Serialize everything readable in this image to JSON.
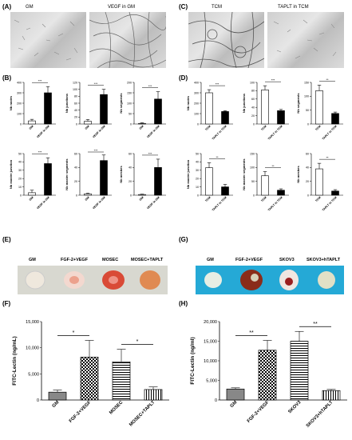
{
  "panels": {
    "A": {
      "label": "(A)",
      "titles": [
        "GM",
        "VEGF in GM"
      ]
    },
    "C": {
      "label": "(C)",
      "titles": [
        "TCM",
        "TAPLT in TCM"
      ]
    },
    "B": {
      "label": "(B)"
    },
    "D": {
      "label": "(D)"
    },
    "E": {
      "label": "(E)",
      "titles": [
        "GM",
        "FGF-2+VEGF",
        "MOSEC",
        "MOSEC+TAPLT"
      ]
    },
    "G": {
      "label": "(G)",
      "titles": [
        "GM",
        "FGF-2+VEGF",
        "SKOV3",
        "SKOV3+hTAPLT"
      ]
    },
    "F": {
      "label": "(F)"
    },
    "H": {
      "label": "(H)"
    }
  },
  "colors": {
    "black": "#000000",
    "white": "#ffffff",
    "grey": "#888888",
    "blue": "#25a9d6"
  },
  "chart_data": [
    {
      "id": "B1",
      "type": "bar",
      "categories": [
        "GM",
        "VEGF in GM"
      ],
      "values": [
        30,
        300
      ],
      "errors": [
        15,
        60
      ],
      "ylabel": "Nb nodes",
      "ylim": [
        0,
        400
      ],
      "yticks": [
        0,
        100,
        200,
        300,
        400
      ],
      "fills": [
        "white",
        "black"
      ],
      "sig": "***"
    },
    {
      "id": "B2",
      "type": "bar",
      "categories": [
        "GM",
        "VEGF in GM"
      ],
      "values": [
        8,
        85
      ],
      "errors": [
        5,
        15
      ],
      "ylabel": "Nb junctions",
      "ylim": [
        0,
        120
      ],
      "yticks": [
        0,
        20,
        40,
        60,
        80,
        100,
        120
      ],
      "fills": [
        "white",
        "black"
      ],
      "sig": "***"
    },
    {
      "id": "B3",
      "type": "bar",
      "categories": [
        "GM",
        "VEGF in GM"
      ],
      "values": [
        3,
        120
      ],
      "errors": [
        3,
        35
      ],
      "ylabel": "Nb segments",
      "ylim": [
        0,
        200
      ],
      "yticks": [
        0,
        50,
        100,
        150,
        200
      ],
      "fills": [
        "white",
        "black"
      ],
      "sig": "***"
    },
    {
      "id": "B4",
      "type": "bar",
      "categories": [
        "GM",
        "VEGF in GM"
      ],
      "values": [
        3,
        38
      ],
      "errors": [
        3,
        7
      ],
      "ylabel": "Nb master junction",
      "ylim": [
        0,
        50
      ],
      "yticks": [
        0,
        10,
        20,
        30,
        40,
        50
      ],
      "fills": [
        "white",
        "black"
      ],
      "sig": "***"
    },
    {
      "id": "B5",
      "type": "bar",
      "categories": [
        "GM",
        "VEGF in GM"
      ],
      "values": [
        2,
        50
      ],
      "errors": [
        1,
        8
      ],
      "ylabel": "Nb master segments",
      "ylim": [
        0,
        60
      ],
      "yticks": [
        0,
        20,
        40,
        60
      ],
      "fills": [
        "white",
        "black"
      ],
      "sig": "***"
    },
    {
      "id": "B6",
      "type": "bar",
      "categories": [
        "GM",
        "VEGF in GM"
      ],
      "values": [
        1,
        40
      ],
      "errors": [
        0.5,
        12
      ],
      "ylabel": "Nb meshes",
      "ylim": [
        0,
        60
      ],
      "yticks": [
        0,
        20,
        40,
        60
      ],
      "fills": [
        "white",
        "black"
      ],
      "sig": "***"
    },
    {
      "id": "D1",
      "type": "bar",
      "categories": [
        "TCM",
        "TAPLT in TCM"
      ],
      "values": [
        300,
        120
      ],
      "errors": [
        30,
        8
      ],
      "ylabel": "Nb nodes",
      "ylim": [
        0,
        400
      ],
      "yticks": [
        0,
        100,
        200,
        300,
        400
      ],
      "fills": [
        "white",
        "black"
      ],
      "sig": "***"
    },
    {
      "id": "D2",
      "type": "bar",
      "categories": [
        "TCM",
        "TAPLT in TCM"
      ],
      "values": [
        82,
        32
      ],
      "errors": [
        10,
        3
      ],
      "ylabel": "Nb junctions",
      "ylim": [
        0,
        100
      ],
      "yticks": [
        0,
        20,
        40,
        60,
        80,
        100
      ],
      "fills": [
        "white",
        "black"
      ],
      "sig": "***"
    },
    {
      "id": "D3",
      "type": "bar",
      "categories": [
        "TCM",
        "TAPLT in TCM"
      ],
      "values": [
        120,
        38
      ],
      "errors": [
        20,
        5
      ],
      "ylabel": "Nb segments",
      "ylim": [
        0,
        150
      ],
      "yticks": [
        0,
        50,
        100,
        150
      ],
      "fills": [
        "white",
        "black"
      ],
      "sig": "**"
    },
    {
      "id": "D4",
      "type": "bar",
      "categories": [
        "TCM",
        "TAPLT in TCM"
      ],
      "values": [
        33,
        10
      ],
      "errors": [
        6,
        3
      ],
      "ylabel": "Nb master junction",
      "ylim": [
        0,
        50
      ],
      "yticks": [
        0,
        10,
        20,
        30,
        40,
        50
      ],
      "fills": [
        "white",
        "black"
      ],
      "sig": "**"
    },
    {
      "id": "D5",
      "type": "bar",
      "categories": [
        "TCM",
        "TAPLT in TCM"
      ],
      "values": [
        70,
        18
      ],
      "errors": [
        15,
        5
      ],
      "ylabel": "Nb master segments",
      "ylim": [
        0,
        150
      ],
      "yticks": [
        0,
        50,
        100,
        150
      ],
      "fills": [
        "white",
        "black"
      ],
      "sig": "**"
    },
    {
      "id": "D6",
      "type": "bar",
      "categories": [
        "TCM",
        "TAPLT in TCM"
      ],
      "values": [
        38,
        6
      ],
      "errors": [
        8,
        2
      ],
      "ylabel": "Nb meshes",
      "ylim": [
        0,
        60
      ],
      "yticks": [
        0,
        20,
        40,
        60
      ],
      "fills": [
        "white",
        "black"
      ],
      "sig": "**"
    },
    {
      "id": "F",
      "type": "bar",
      "categories": [
        "GM",
        "FGF-2+VEGF",
        "MOSEC",
        "MOSEC+TAPLT"
      ],
      "values": [
        1500,
        8200,
        7300,
        2000
      ],
      "errors": [
        400,
        3200,
        2400,
        500
      ],
      "ylabel": "FITC-Lectin (ng/mL)",
      "ylim": [
        0,
        15000
      ],
      "yticks": [
        0,
        5000,
        10000,
        15000
      ],
      "yticklabels": [
        "0",
        "5,000",
        "10,000",
        "15,000"
      ],
      "fills": [
        "grey",
        "check",
        "hstripe",
        "vstripe"
      ],
      "sigs": [
        {
          "from": 0,
          "to": 1,
          "text": "*"
        },
        {
          "from": 2,
          "to": 3,
          "text": "*"
        }
      ]
    },
    {
      "id": "H",
      "type": "bar",
      "categories": [
        "GM",
        "FGF-2+VEGF",
        "SKOV3",
        "SKOV3+hTAPLT"
      ],
      "values": [
        2800,
        12700,
        15000,
        2400
      ],
      "errors": [
        300,
        2500,
        2500,
        300
      ],
      "ylabel": "FITC-Lectin (ng/ml)",
      "ylim": [
        0,
        20000
      ],
      "yticks": [
        0,
        5000,
        10000,
        15000,
        20000
      ],
      "yticklabels": [
        "0",
        "5,000",
        "10,000",
        "15,000",
        "20,000"
      ],
      "fills": [
        "grey",
        "check",
        "hstripe",
        "vstripe"
      ],
      "sigs": [
        {
          "from": 0,
          "to": 1,
          "text": "**"
        },
        {
          "from": 2,
          "to": 3,
          "text": "**"
        }
      ]
    }
  ]
}
